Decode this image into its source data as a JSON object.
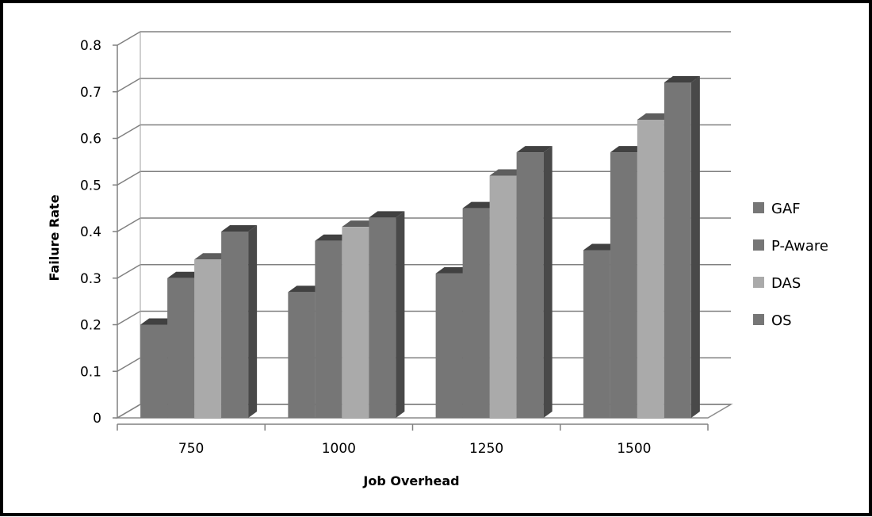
{
  "chart_data": {
    "type": "bar",
    "style": "3d-clustered-column",
    "categories": [
      "750",
      "1000",
      "1250",
      "1500"
    ],
    "series": [
      {
        "name": "GAF",
        "values": [
          0.2,
          0.27,
          0.31,
          0.36
        ],
        "color": "#767676"
      },
      {
        "name": "P-Aware",
        "values": [
          0.3,
          0.38,
          0.45,
          0.57
        ],
        "color": "#767676"
      },
      {
        "name": "DAS",
        "values": [
          0.34,
          0.41,
          0.52,
          0.64
        ],
        "color": "#aaaaaa"
      },
      {
        "name": "OS",
        "values": [
          0.4,
          0.43,
          0.57,
          0.72
        ],
        "color": "#767676"
      }
    ],
    "yticks": [
      "0",
      "0.1",
      "0.2",
      "0.3",
      "0.4",
      "0.5",
      "0.6",
      "0.7",
      "0.8"
    ],
    "ylim": [
      0,
      0.8
    ],
    "xlabel": "Job Overhead",
    "ylabel": "Failure Rate",
    "grid": true,
    "legend_position": "right"
  }
}
